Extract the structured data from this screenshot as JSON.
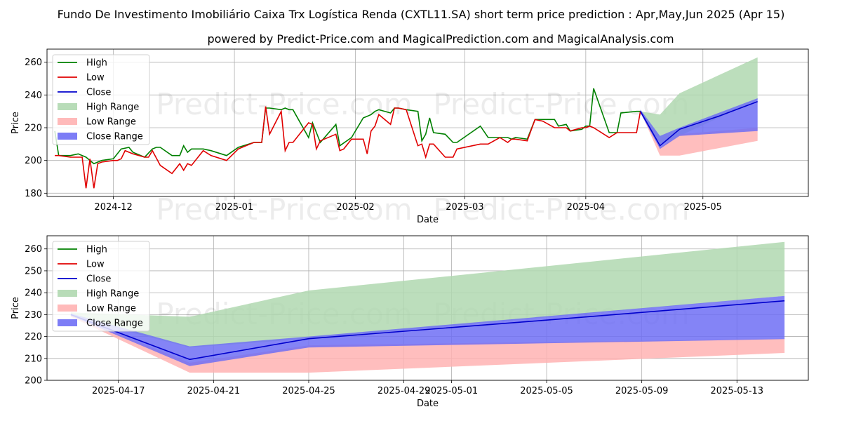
{
  "title_line1": "Fundo De Investimento Imobiliário Caixa Trx Logística Renda (CXTL11.SA) short term price prediction : Apr,May,Jun 2025 (Apr 15)",
  "title_line2": "powered by Predict-Price.com and MagicalPrediction.com and MagicalAnalysis.com",
  "watermark": "Predict-Price.com",
  "colors": {
    "high": "#008000",
    "low": "#e00000",
    "close": "#0000cc",
    "high_range": "#b0d8b0",
    "low_range": "#ffb3b3",
    "close_range": "#6f6ff5"
  },
  "chart_data": [
    {
      "type": "line",
      "xlabel": "Date",
      "ylabel": "Price",
      "ylim": [
        178,
        268
      ],
      "grid": true,
      "legend_position": "top-left",
      "yticks": [
        180,
        200,
        220,
        240,
        260
      ],
      "xticks": [
        {
          "date": "2024-12-01",
          "label": "2024-12"
        },
        {
          "date": "2025-01-01",
          "label": "2025-01"
        },
        {
          "date": "2025-02-01",
          "label": "2025-02"
        },
        {
          "date": "2025-03-01",
          "label": "2025-03"
        },
        {
          "date": "2025-04-01",
          "label": "2025-04"
        },
        {
          "date": "2025-05-01",
          "label": "2025-05"
        }
      ],
      "xlim": [
        "2024-11-14",
        "2025-05-28"
      ],
      "legend": [
        "High",
        "Low",
        "Close",
        "High Range",
        "Low Range",
        "Close Range"
      ],
      "series": [
        {
          "name": "High",
          "x": [
            "2024-11-16",
            "2024-11-17",
            "2024-11-20",
            "2024-11-22",
            "2024-11-24",
            "2024-11-26",
            "2024-11-27",
            "2024-11-28",
            "2024-12-01",
            "2024-12-03",
            "2024-12-05",
            "2024-12-06",
            "2024-12-09",
            "2024-12-11",
            "2024-12-12",
            "2024-12-13",
            "2024-12-16",
            "2024-12-18",
            "2024-12-19",
            "2024-12-20",
            "2024-12-21",
            "2024-12-24",
            "2024-12-26",
            "2024-12-30",
            "2025-01-02",
            "2025-01-06",
            "2025-01-07",
            "2025-01-08",
            "2025-01-09",
            "2025-01-10",
            "2025-01-13",
            "2025-01-14",
            "2025-01-15",
            "2025-01-16",
            "2025-01-20",
            "2025-01-21",
            "2025-01-23",
            "2025-01-27",
            "2025-01-28",
            "2025-01-31",
            "2025-02-03",
            "2025-02-04",
            "2025-02-05",
            "2025-02-06",
            "2025-02-07",
            "2025-02-10",
            "2025-02-11",
            "2025-02-12",
            "2025-02-14",
            "2025-02-17",
            "2025-02-18",
            "2025-02-19",
            "2025-02-20",
            "2025-02-21",
            "2025-02-24",
            "2025-02-26",
            "2025-02-27",
            "2025-03-05",
            "2025-03-07",
            "2025-03-10",
            "2025-03-12",
            "2025-03-13",
            "2025-03-14",
            "2025-03-17",
            "2025-03-19",
            "2025-03-21",
            "2025-03-24",
            "2025-03-25",
            "2025-03-27",
            "2025-03-28",
            "2025-03-31",
            "2025-04-01",
            "2025-04-02",
            "2025-04-03",
            "2025-04-07",
            "2025-04-09",
            "2025-04-10",
            "2025-04-14",
            "2025-04-15"
          ],
          "values": [
            218,
            203,
            203,
            204,
            202,
            198,
            199,
            200,
            201,
            207,
            208,
            205,
            202,
            207,
            208,
            208,
            203,
            203,
            209,
            205,
            207,
            207,
            206,
            203,
            208,
            211,
            211,
            211,
            232,
            232,
            231,
            232,
            231,
            231,
            214,
            223,
            211,
            222,
            209,
            214,
            226,
            227,
            228,
            230,
            231,
            229,
            232,
            232,
            231,
            230,
            212,
            216,
            226,
            217,
            216,
            211,
            211,
            221,
            214,
            214,
            214,
            213,
            214,
            213,
            225,
            225,
            225,
            221,
            222,
            218,
            219,
            221,
            221,
            244,
            217,
            217,
            229,
            230,
            230
          ]
        },
        {
          "name": "Low",
          "x": [
            "2024-11-16",
            "2024-11-17",
            "2024-11-20",
            "2024-11-23",
            "2024-11-24",
            "2024-11-25",
            "2024-11-26",
            "2024-11-27",
            "2024-11-28",
            "2024-12-01",
            "2024-12-02",
            "2024-12-03",
            "2024-12-04",
            "2024-12-06",
            "2024-12-09",
            "2024-12-10",
            "2024-12-11",
            "2024-12-13",
            "2024-12-16",
            "2024-12-18",
            "2024-12-19",
            "2024-12-20",
            "2024-12-21",
            "2024-12-24",
            "2024-12-26",
            "2024-12-30",
            "2025-01-02",
            "2025-01-06",
            "2025-01-07",
            "2025-01-08",
            "2025-01-09",
            "2025-01-10",
            "2025-01-13",
            "2025-01-14",
            "2025-01-15",
            "2025-01-16",
            "2025-01-20",
            "2025-01-21",
            "2025-01-22",
            "2025-01-23",
            "2025-01-27",
            "2025-01-28",
            "2025-01-29",
            "2025-01-31",
            "2025-02-03",
            "2025-02-04",
            "2025-02-05",
            "2025-02-06",
            "2025-02-07",
            "2025-02-10",
            "2025-02-11",
            "2025-02-12",
            "2025-02-14",
            "2025-02-17",
            "2025-02-18",
            "2025-02-19",
            "2025-02-20",
            "2025-02-21",
            "2025-02-24",
            "2025-02-26",
            "2025-02-27",
            "2025-03-05",
            "2025-03-07",
            "2025-03-10",
            "2025-03-12",
            "2025-03-13",
            "2025-03-14",
            "2025-03-17",
            "2025-03-19",
            "2025-03-21",
            "2025-03-24",
            "2025-03-25",
            "2025-03-27",
            "2025-03-28",
            "2025-03-31",
            "2025-04-01",
            "2025-04-02",
            "2025-04-03",
            "2025-04-07",
            "2025-04-09",
            "2025-04-10",
            "2025-04-14",
            "2025-04-15"
          ],
          "values": [
            203,
            203,
            202,
            202,
            183,
            201,
            183,
            198,
            199,
            200,
            200,
            201,
            206,
            204,
            202,
            202,
            206,
            197,
            192,
            198,
            194,
            198,
            197,
            206,
            203,
            200,
            207,
            211,
            211,
            211,
            233,
            216,
            230,
            206,
            211,
            211,
            223,
            222,
            207,
            212,
            216,
            206,
            207,
            213,
            213,
            204,
            218,
            221,
            228,
            222,
            232,
            232,
            231,
            209,
            210,
            202,
            210,
            210,
            202,
            202,
            207,
            210,
            210,
            214,
            211,
            213,
            213,
            212,
            225,
            224,
            220,
            220,
            220,
            218,
            220,
            220,
            221,
            220,
            214,
            217,
            217,
            217,
            230
          ]
        },
        {
          "name": "Close",
          "x": [
            "2025-04-15",
            "2025-04-20",
            "2025-04-25",
            "2025-05-05",
            "2025-05-15"
          ],
          "values": [
            230,
            209,
            219,
            227,
            236
          ]
        },
        {
          "name": "High Range",
          "type": "band",
          "x": [
            "2025-04-15",
            "2025-04-20",
            "2025-04-25",
            "2025-05-15"
          ],
          "upper": [
            230,
            228,
            241,
            263
          ],
          "lower": [
            230,
            210,
            215,
            237
          ]
        },
        {
          "name": "Low Range",
          "type": "band",
          "x": [
            "2025-04-15",
            "2025-04-20",
            "2025-04-25",
            "2025-05-15"
          ],
          "upper": [
            230,
            208,
            216,
            220
          ],
          "lower": [
            230,
            203,
            203,
            212
          ]
        },
        {
          "name": "Close Range",
          "type": "band",
          "x": [
            "2025-04-15",
            "2025-04-20",
            "2025-04-25",
            "2025-05-15"
          ],
          "upper": [
            231,
            215,
            220,
            238
          ],
          "lower": [
            229,
            207,
            215,
            218
          ]
        }
      ]
    },
    {
      "type": "line",
      "xlabel": "Date",
      "ylabel": "Price",
      "ylim": [
        200,
        266
      ],
      "grid": true,
      "legend_position": "top-left",
      "yticks": [
        200,
        210,
        220,
        230,
        240,
        250,
        260
      ],
      "xticks": [
        {
          "date": "2025-04-17",
          "label": "2025-04-17"
        },
        {
          "date": "2025-04-21",
          "label": "2025-04-21"
        },
        {
          "date": "2025-04-25",
          "label": "2025-04-25"
        },
        {
          "date": "2025-04-29",
          "label": "2025-04-29"
        },
        {
          "date": "2025-05-01",
          "label": "2025-05-01"
        },
        {
          "date": "2025-05-05",
          "label": "2025-05-05"
        },
        {
          "date": "2025-05-09",
          "label": "2025-05-09"
        },
        {
          "date": "2025-05-13",
          "label": "2025-05-13"
        }
      ],
      "xlim": [
        "2025-04-14",
        "2025-05-16"
      ],
      "legend": [
        "High",
        "Low",
        "Close",
        "High Range",
        "Low Range",
        "Close Range"
      ],
      "series": [
        {
          "name": "Close",
          "x": [
            "2025-04-15",
            "2025-04-20",
            "2025-04-25",
            "2025-05-05",
            "2025-05-15"
          ],
          "values": [
            230,
            209.5,
            219,
            227.5,
            236.3
          ]
        },
        {
          "name": "High Range",
          "type": "band",
          "x": [
            "2025-04-15",
            "2025-04-20",
            "2025-04-25",
            "2025-05-15"
          ],
          "upper": [
            231,
            229,
            241,
            263.2
          ],
          "lower": [
            229,
            215,
            219,
            238.5
          ]
        },
        {
          "name": "Low Range",
          "type": "band",
          "x": [
            "2025-04-15",
            "2025-04-20",
            "2025-04-25",
            "2025-05-15"
          ],
          "upper": [
            230,
            208,
            216,
            219
          ],
          "lower": [
            229,
            203.5,
            203.5,
            212.5
          ]
        },
        {
          "name": "Close Range",
          "type": "band",
          "x": [
            "2025-04-15",
            "2025-04-20",
            "2025-04-25",
            "2025-05-15"
          ],
          "upper": [
            230.5,
            215.5,
            220,
            238.5
          ],
          "lower": [
            229.5,
            206.5,
            215,
            218.8
          ]
        }
      ]
    }
  ]
}
